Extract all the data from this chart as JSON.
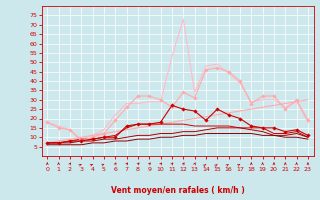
{
  "xlabel": "Vent moyen/en rafales ( km/h )",
  "x": [
    0,
    1,
    2,
    3,
    4,
    5,
    6,
    7,
    8,
    9,
    10,
    11,
    12,
    13,
    14,
    15,
    16,
    17,
    18,
    19,
    20,
    21,
    22,
    23
  ],
  "series": [
    {
      "color": "#ffaaaa",
      "lw": 0.8,
      "marker": "D",
      "ms": 1.8,
      "values": [
        18,
        15,
        14,
        8,
        10,
        12,
        19,
        26,
        32,
        32,
        30,
        26,
        34,
        31,
        46,
        47,
        45,
        40,
        28,
        32,
        32,
        25,
        30,
        19
      ]
    },
    {
      "color": "#ffbbcc",
      "lw": 0.8,
      "marker": null,
      "ms": 0,
      "values": [
        18,
        16,
        14,
        9,
        11,
        14,
        22,
        28,
        28,
        29,
        29,
        53,
        73,
        34,
        48,
        49,
        44,
        39,
        29,
        30,
        30,
        26,
        29,
        18
      ]
    },
    {
      "color": "#ffaaaa",
      "lw": 0.8,
      "marker": null,
      "ms": 0,
      "values": [
        7,
        8,
        9,
        10,
        11,
        12,
        13,
        14,
        15,
        16,
        17,
        18,
        19,
        20,
        21,
        22,
        23,
        24,
        25,
        26,
        27,
        28,
        29,
        30
      ]
    },
    {
      "color": "#cc0000",
      "lw": 0.8,
      "marker": "D",
      "ms": 1.8,
      "values": [
        7,
        7,
        8,
        8,
        9,
        10,
        10,
        16,
        17,
        17,
        18,
        27,
        25,
        24,
        19,
        25,
        22,
        20,
        16,
        15,
        15,
        13,
        14,
        11
      ]
    },
    {
      "color": "#cc0000",
      "lw": 0.7,
      "marker": null,
      "ms": 0,
      "values": [
        7,
        7,
        8,
        9,
        9,
        10,
        11,
        15,
        17,
        17,
        17,
        17,
        17,
        16,
        16,
        16,
        16,
        15,
        15,
        15,
        12,
        12,
        13,
        10
      ]
    },
    {
      "color": "#aa0000",
      "lw": 0.7,
      "marker": null,
      "ms": 0,
      "values": [
        7,
        7,
        7,
        8,
        8,
        9,
        9,
        10,
        11,
        11,
        12,
        12,
        13,
        13,
        14,
        15,
        15,
        15,
        14,
        13,
        11,
        11,
        12,
        10
      ]
    },
    {
      "color": "#880000",
      "lw": 0.7,
      "marker": null,
      "ms": 0,
      "values": [
        6,
        6,
        6,
        6,
        7,
        7,
        8,
        8,
        9,
        9,
        10,
        10,
        11,
        11,
        12,
        12,
        12,
        12,
        12,
        11,
        11,
        10,
        10,
        9
      ]
    }
  ],
  "ylim": [
    0,
    80
  ],
  "yticks": [
    5,
    10,
    15,
    20,
    25,
    30,
    35,
    40,
    45,
    50,
    55,
    60,
    65,
    70,
    75
  ],
  "xlim_min": -0.5,
  "xlim_max": 23.5,
  "xticks": [
    0,
    1,
    2,
    3,
    4,
    5,
    6,
    7,
    8,
    9,
    10,
    11,
    12,
    13,
    14,
    15,
    16,
    17,
    18,
    19,
    20,
    21,
    22,
    23
  ],
  "bg_color": "#cde8ec",
  "grid_color": "#ffffff",
  "tick_color": "#cc0000",
  "label_color": "#cc0000",
  "arrow_color": "#cc0000",
  "arrow_angles": [
    0,
    0,
    15,
    50,
    50,
    55,
    15,
    25,
    25,
    25,
    25,
    20,
    20,
    15,
    35,
    35,
    40,
    45,
    0,
    0,
    0,
    0,
    0,
    0
  ]
}
